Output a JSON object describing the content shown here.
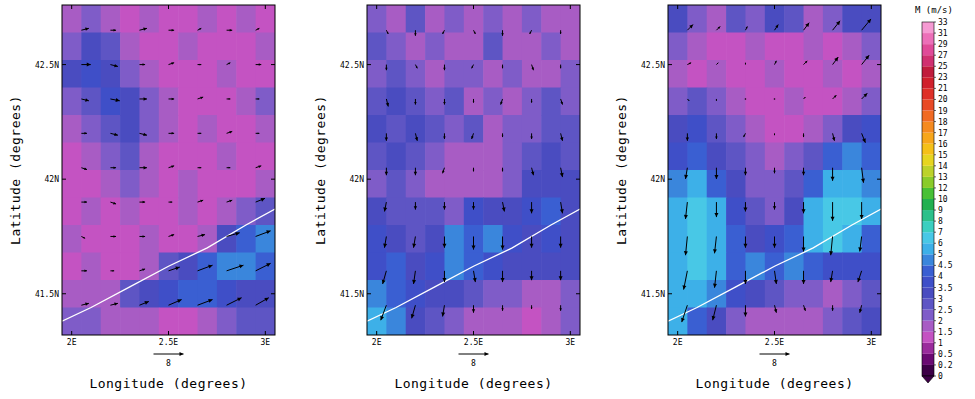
{
  "chart_data": [
    {
      "type": "heatmap",
      "x_label": "Longitude (degrees)",
      "y_label": "Latitude (degrees)",
      "xlim": [
        1.95,
        3.05
      ],
      "ylim": [
        41.32,
        42.76
      ],
      "xticks": [
        {
          "value": 2,
          "label": "2E"
        },
        {
          "value": 2.5,
          "label": "2.5E"
        },
        {
          "value": 3,
          "label": "3E"
        }
      ],
      "yticks": [
        {
          "value": 41.5,
          "label": "41.5N"
        },
        {
          "value": 42,
          "label": "42N"
        },
        {
          "value": 42.5,
          "label": "42.5N"
        }
      ],
      "lon": [
        2.0,
        2.1,
        2.2,
        2.3,
        2.4,
        2.5,
        2.6,
        2.7,
        2.8,
        2.9,
        3.0
      ],
      "lat": [
        42.7,
        42.58,
        42.46,
        42.34,
        42.22,
        42.1,
        41.98,
        41.86,
        41.74,
        41.62,
        41.5,
        41.38
      ],
      "speed": [
        [
          1.5,
          2,
          1.5,
          1,
          1.5,
          1,
          1,
          1.5,
          1,
          1.5,
          1
        ],
        [
          2,
          3,
          2.5,
          1.5,
          1,
          1,
          1.5,
          1,
          1,
          1,
          1.5
        ],
        [
          3,
          3.5,
          3,
          2,
          1.5,
          1,
          1,
          1,
          1.5,
          1,
          1
        ],
        [
          2,
          2.5,
          3.5,
          3,
          2,
          1.5,
          1,
          1,
          1,
          1.5,
          2
        ],
        [
          1.5,
          2,
          2.5,
          3,
          2,
          1.5,
          1,
          1.5,
          1,
          1,
          1.5
        ],
        [
          1,
          1.5,
          2,
          2.5,
          1.5,
          1,
          1,
          1,
          1.5,
          1,
          1
        ],
        [
          1,
          1,
          1.5,
          2,
          1.5,
          1,
          1.5,
          1,
          1,
          1,
          1.5
        ],
        [
          1,
          1.5,
          1,
          1.5,
          1,
          1,
          1.5,
          1,
          1.5,
          2,
          2.5
        ],
        [
          1.5,
          1,
          1,
          1,
          1.5,
          1,
          1,
          1.5,
          3,
          4,
          4.5
        ],
        [
          1,
          1.5,
          1,
          1,
          1.5,
          2.5,
          3,
          4,
          4.5,
          4.5,
          4
        ],
        [
          1.5,
          1.5,
          1.5,
          2.5,
          3,
          3.5,
          4,
          4,
          3.5,
          3,
          3
        ],
        [
          2,
          2,
          1.5,
          1.5,
          1.5,
          1,
          1,
          1.5,
          2,
          2.5,
          2.5
        ]
      ],
      "vector_lon": [
        2.05,
        2.2,
        2.35,
        2.5,
        2.65,
        2.8,
        2.95
      ],
      "vector_lat": [
        42.65,
        42.5,
        42.35,
        42.2,
        42.05,
        41.9,
        41.75,
        41.6,
        41.45
      ],
      "u": [
        [
          2,
          1.5,
          2,
          1.5,
          1,
          1.5,
          1
        ],
        [
          2.5,
          2,
          1.5,
          1.5,
          1,
          1,
          1.5
        ],
        [
          2,
          2.5,
          2,
          1.5,
          1.5,
          1,
          1
        ],
        [
          1.5,
          2,
          2,
          1.5,
          1,
          1.5,
          1
        ],
        [
          1.5,
          1.5,
          2,
          1.5,
          1,
          1,
          1.5
        ],
        [
          1.5,
          1.5,
          1.5,
          1,
          1.5,
          1.5,
          2.5
        ],
        [
          1,
          1.5,
          1.5,
          1.5,
          2,
          3.5,
          4
        ],
        [
          1.5,
          1,
          1.5,
          3,
          4,
          4.5,
          4
        ],
        [
          2,
          2,
          2.5,
          3.5,
          4,
          4,
          3.5
        ]
      ],
      "v": [
        [
          0.5,
          0,
          0.5,
          0,
          0.5,
          0,
          0.5
        ],
        [
          0,
          -0.5,
          0,
          0.5,
          0,
          0.5,
          0
        ],
        [
          -0.5,
          -0.5,
          0,
          0,
          0.5,
          0,
          0
        ],
        [
          0,
          -0.5,
          -0.5,
          0,
          0,
          0.5,
          0
        ],
        [
          -0.5,
          0,
          0,
          0.5,
          0,
          0,
          0.5
        ],
        [
          0,
          -0.5,
          0,
          0,
          0.5,
          0.5,
          1
        ],
        [
          -0.5,
          0,
          0,
          0.5,
          0.5,
          1,
          1.5
        ],
        [
          0,
          0,
          0.5,
          1,
          1.5,
          1.5,
          2
        ],
        [
          0.5,
          0.5,
          1,
          1.5,
          1.5,
          2,
          2
        ]
      ],
      "reference_vector": 8,
      "coastline": {
        "lon": [
          1.95,
          2.1,
          2.3,
          2.5,
          2.7,
          2.9,
          3.05
        ],
        "lat": [
          41.38,
          41.44,
          41.53,
          41.62,
          41.7,
          41.8,
          41.87
        ]
      }
    },
    {
      "type": "heatmap",
      "x_label": "Longitude (degrees)",
      "y_label": "Latitude (degrees)",
      "xlim": [
        1.95,
        3.05
      ],
      "ylim": [
        41.32,
        42.76
      ],
      "xticks": [
        {
          "value": 2,
          "label": "2E"
        },
        {
          "value": 2.5,
          "label": "2.5E"
        },
        {
          "value": 3,
          "label": "3E"
        }
      ],
      "yticks": [
        {
          "value": 41.5,
          "label": "41.5N"
        },
        {
          "value": 42,
          "label": "42N"
        },
        {
          "value": 42.5,
          "label": "42.5N"
        }
      ],
      "lon": [
        2.0,
        2.1,
        2.2,
        2.3,
        2.4,
        2.5,
        2.6,
        2.7,
        2.8,
        2.9,
        3.0
      ],
      "lat": [
        42.7,
        42.58,
        42.46,
        42.34,
        42.22,
        42.1,
        41.98,
        41.86,
        41.74,
        41.62,
        41.5,
        41.38
      ],
      "speed": [
        [
          2,
          1.5,
          2.5,
          1.5,
          2,
          1.5,
          2,
          1.5,
          2,
          1.5,
          1.5
        ],
        [
          2.5,
          2,
          1.5,
          2,
          1.5,
          1.5,
          2.5,
          1.5,
          1.5,
          2,
          1.5
        ],
        [
          2,
          2.5,
          2,
          1.5,
          2,
          2,
          1.5,
          2,
          1.5,
          1.5,
          2
        ],
        [
          2.5,
          3,
          2.5,
          2,
          2.5,
          1.5,
          2,
          1.5,
          2,
          2.5,
          2
        ],
        [
          3,
          2.5,
          3,
          2.5,
          2,
          2.5,
          1.5,
          2,
          2,
          2.5,
          2.5
        ],
        [
          2.5,
          3,
          2.5,
          2,
          1.5,
          1.5,
          1.5,
          2,
          2.5,
          3,
          2.5
        ],
        [
          2,
          2.5,
          2,
          1.5,
          1.5,
          1.5,
          1.5,
          2,
          3,
          3,
          3
        ],
        [
          3,
          2.5,
          2.5,
          2.5,
          2,
          3.5,
          3,
          3,
          3.5,
          4,
          3
        ],
        [
          3.5,
          3,
          2.5,
          3,
          4.5,
          4,
          4.5,
          3.5,
          3,
          3.5,
          3
        ],
        [
          3.5,
          4,
          3,
          3.5,
          4.5,
          4,
          3.5,
          3,
          3,
          3,
          3
        ],
        [
          4.5,
          4,
          3.5,
          3,
          3,
          2.5,
          2,
          2,
          1.5,
          1.5,
          2
        ],
        [
          5,
          4.5,
          3,
          2.5,
          2,
          1.5,
          1.5,
          1.5,
          1,
          1.5,
          2
        ]
      ],
      "vector_lon": [
        2.05,
        2.2,
        2.35,
        2.5,
        2.65,
        2.8,
        2.95
      ],
      "vector_lat": [
        42.65,
        42.5,
        42.35,
        42.2,
        42.05,
        41.9,
        41.75,
        41.6,
        41.45
      ],
      "u": [
        [
          0.5,
          0,
          -0.5,
          0.5,
          0,
          -0.5,
          0
        ],
        [
          0,
          0.5,
          0,
          -0.5,
          0,
          0.5,
          0
        ],
        [
          0.5,
          0,
          0,
          0,
          -0.5,
          0,
          0.5
        ],
        [
          0,
          0.5,
          0,
          -0.5,
          0,
          0,
          0.5
        ],
        [
          0,
          0,
          -0.5,
          0,
          0,
          0.5,
          0.5
        ],
        [
          -0.5,
          0,
          0,
          0,
          0.5,
          0,
          0.5
        ],
        [
          -0.5,
          -0.5,
          0,
          0,
          0,
          0,
          0
        ],
        [
          -1,
          -0.5,
          0,
          0.5,
          0,
          0,
          0
        ],
        [
          -1.5,
          -1,
          -0.5,
          0,
          0,
          0,
          0
        ]
      ],
      "v": [
        [
          -1,
          -1.5,
          -1,
          -1,
          -1.5,
          -1,
          -1
        ],
        [
          -1.5,
          -1,
          -1.5,
          -1,
          -1,
          -1.5,
          -1
        ],
        [
          -2,
          -1.5,
          -1.5,
          -1,
          -1.5,
          -1,
          -1.5
        ],
        [
          -2,
          -2,
          -1.5,
          -1.5,
          -1,
          -1.5,
          -2
        ],
        [
          -2,
          -2,
          -1.5,
          -1,
          -1,
          -2,
          -2.5
        ],
        [
          -2.5,
          -2,
          -2,
          -2,
          -2.5,
          -3,
          -3
        ],
        [
          -3,
          -3,
          -3,
          -3.5,
          -3.5,
          -3,
          -3
        ],
        [
          -3.5,
          -3.5,
          -3,
          -3,
          -3,
          -2.5,
          -2.5
        ],
        [
          -4,
          -3.5,
          -3,
          -2,
          -1.5,
          -1,
          -1.5
        ]
      ],
      "reference_vector": 8,
      "coastline": {
        "lon": [
          1.95,
          2.1,
          2.3,
          2.5,
          2.7,
          2.9,
          3.05
        ],
        "lat": [
          41.38,
          41.44,
          41.53,
          41.62,
          41.7,
          41.8,
          41.87
        ]
      }
    },
    {
      "type": "heatmap",
      "x_label": "Longitude (degrees)",
      "y_label": "Latitude (degrees)",
      "xlim": [
        1.95,
        3.05
      ],
      "ylim": [
        41.32,
        42.76
      ],
      "xticks": [
        {
          "value": 2,
          "label": "2E"
        },
        {
          "value": 2.5,
          "label": "2.5E"
        },
        {
          "value": 3,
          "label": "3E"
        }
      ],
      "yticks": [
        {
          "value": 41.5,
          "label": "41.5N"
        },
        {
          "value": 42,
          "label": "42N"
        },
        {
          "value": 42.5,
          "label": "42.5N"
        }
      ],
      "lon": [
        2.0,
        2.1,
        2.2,
        2.3,
        2.4,
        2.5,
        2.6,
        2.7,
        2.8,
        2.9,
        3.0
      ],
      "lat": [
        42.7,
        42.58,
        42.46,
        42.34,
        42.22,
        42.1,
        41.98,
        41.86,
        41.74,
        41.62,
        41.5,
        41.38
      ],
      "speed": [
        [
          3,
          2,
          1.5,
          2.5,
          2,
          3,
          2.5,
          1.5,
          2,
          3,
          3
        ],
        [
          2,
          1.5,
          1,
          1,
          1.5,
          1,
          1,
          1.5,
          1,
          1.5,
          2
        ],
        [
          1.5,
          1,
          1.5,
          1,
          1,
          1.5,
          1,
          1,
          1.5,
          1,
          1.5
        ],
        [
          2,
          2.5,
          2,
          1.5,
          1,
          1,
          1.5,
          1,
          1,
          1.5,
          2
        ],
        [
          3,
          3.5,
          2.5,
          2,
          1.5,
          1,
          1,
          1.5,
          2,
          3,
          3.5
        ],
        [
          3.5,
          4,
          3,
          2.5,
          2,
          1.5,
          2,
          2.5,
          4,
          4.5,
          4
        ],
        [
          4.5,
          5,
          4,
          3,
          2,
          2,
          2.5,
          4,
          5,
          5.5,
          4.5
        ],
        [
          5,
          6,
          5,
          3.5,
          2.5,
          2,
          3,
          5,
          6,
          6.5,
          5
        ],
        [
          5,
          6.5,
          5.5,
          4,
          3,
          3.5,
          4,
          5,
          6,
          5,
          4
        ],
        [
          5,
          6,
          5,
          4,
          4.5,
          4,
          4.5,
          4,
          3.5,
          3.5,
          3.5
        ],
        [
          5.5,
          5,
          4.5,
          3.5,
          3,
          2.5,
          2,
          2,
          1.5,
          2,
          2.5
        ],
        [
          5,
          4,
          3,
          2,
          1.5,
          1.5,
          1.5,
          1.5,
          2,
          2.5,
          3
        ]
      ],
      "vector_lon": [
        2.05,
        2.2,
        2.35,
        2.5,
        2.65,
        2.8,
        2.95
      ],
      "vector_lat": [
        42.65,
        42.5,
        42.35,
        42.2,
        42.05,
        41.9,
        41.75,
        41.6,
        41.45
      ],
      "u": [
        [
          1.5,
          1,
          0.5,
          1,
          1.5,
          2,
          2.5
        ],
        [
          1,
          0.5,
          0,
          0.5,
          1,
          1.5,
          2
        ],
        [
          0.5,
          0,
          0,
          0,
          0.5,
          1,
          1.5
        ],
        [
          0,
          0,
          -0.5,
          0,
          0,
          0.5,
          1
        ],
        [
          -0.5,
          0,
          0,
          0,
          0,
          0,
          0.5
        ],
        [
          -0.5,
          0,
          0,
          0,
          0,
          0,
          0
        ],
        [
          -0.5,
          -0.5,
          0,
          0,
          0,
          -0.5,
          -0.5
        ],
        [
          -1,
          -0.5,
          0,
          0.5,
          0,
          -0.5,
          -1
        ],
        [
          -1.5,
          -1,
          0,
          0.5,
          0.5,
          0,
          -0.5
        ]
      ],
      "v": [
        [
          1.5,
          1,
          1,
          1.5,
          2,
          2.5,
          3
        ],
        [
          0.5,
          0.5,
          0.5,
          1,
          1,
          2,
          2.5
        ],
        [
          -0.5,
          -0.5,
          0,
          0,
          0.5,
          1,
          1.5
        ],
        [
          -2,
          -1.5,
          -1,
          -0.5,
          -1,
          -2,
          -2.5
        ],
        [
          -3,
          -3,
          -2,
          -1.5,
          -2,
          -3.5,
          -4
        ],
        [
          -4.5,
          -4,
          -2.5,
          -2,
          -3,
          -5,
          -4.5
        ],
        [
          -5,
          -4.5,
          -3,
          -3,
          -4,
          -5,
          -4
        ],
        [
          -5,
          -4.5,
          -3.5,
          -3.5,
          -3.5,
          -3,
          -3
        ],
        [
          -4.5,
          -4,
          -3,
          -2,
          -1.5,
          -1.5,
          -2
        ]
      ],
      "reference_vector": 8,
      "coastline": {
        "lon": [
          1.95,
          2.1,
          2.3,
          2.5,
          2.7,
          2.9,
          3.05
        ],
        "lat": [
          41.38,
          41.44,
          41.53,
          41.62,
          41.7,
          41.8,
          41.87
        ]
      }
    }
  ],
  "colorbar": {
    "title": "M (m/s)",
    "range": [
      0,
      33
    ],
    "ticks": [
      0,
      0.2,
      0.5,
      1,
      1.5,
      2,
      2.5,
      3,
      3.5,
      4,
      4.5,
      5,
      6,
      7,
      8,
      9,
      10,
      12,
      13,
      14,
      15,
      16,
      17,
      18,
      19,
      20,
      21,
      23,
      25,
      27,
      29,
      31,
      33
    ],
    "colors": [
      "#3d0047",
      "#6a0a72",
      "#9a2c9c",
      "#c453c2",
      "#a85cc4",
      "#7f5cc8",
      "#5e55c4",
      "#4a4cc0",
      "#3f4fc8",
      "#3a5fd2",
      "#3a86dc",
      "#3db0e8",
      "#48c8e6",
      "#3ccfc0",
      "#2cc08a",
      "#22b050",
      "#48c035",
      "#8acb2a",
      "#bcd22a",
      "#e6d520",
      "#f5c018",
      "#f7a61a",
      "#f58a1e",
      "#f06a22",
      "#e84a25",
      "#de3028",
      "#d0202c",
      "#c01c3c",
      "#d03070",
      "#e04a98",
      "#ec6fb8",
      "#f59ad2"
    ]
  }
}
